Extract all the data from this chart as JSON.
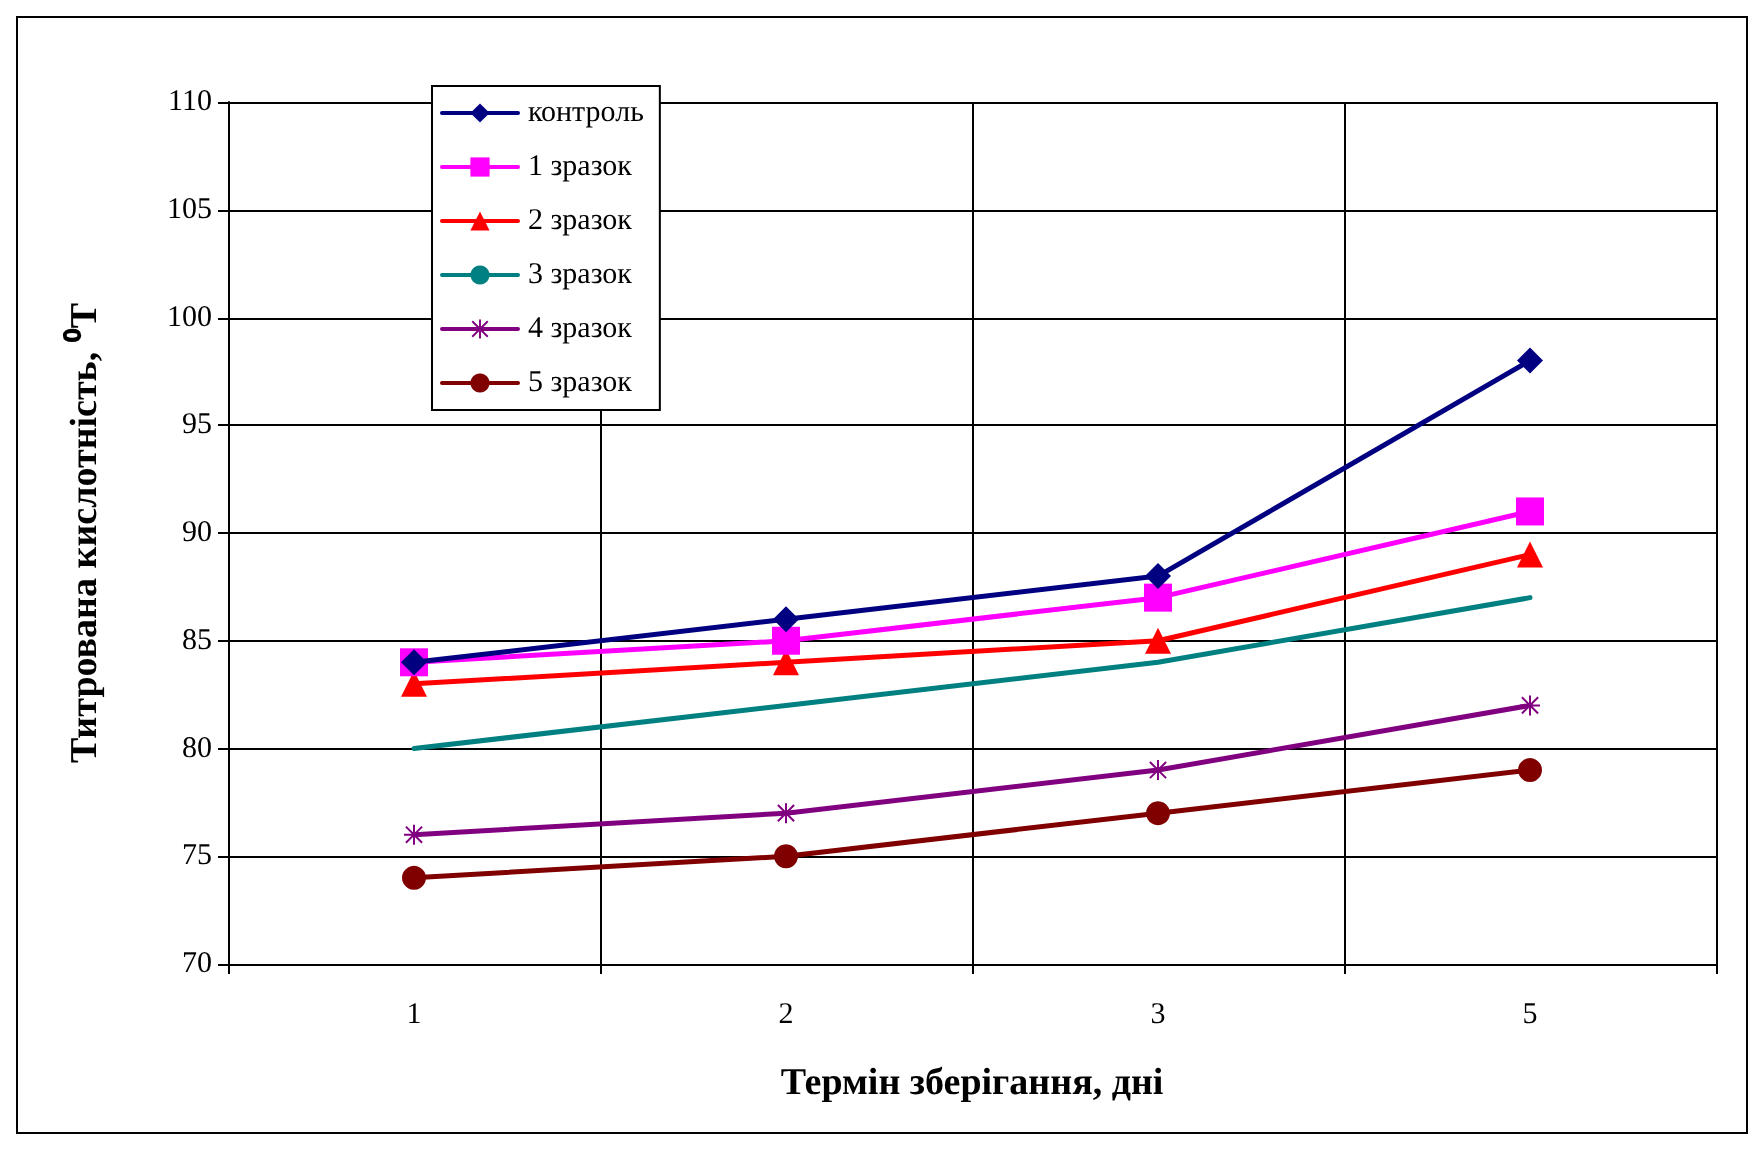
{
  "chart_data": {
    "type": "line",
    "xlabel": "Термін зберігання, дні",
    "ylabel": "Титрована кислотність, ⁰T",
    "categories": [
      "1",
      "2",
      "3",
      "5"
    ],
    "series": [
      {
        "name": "контроль",
        "color": "#000080",
        "marker": "diamond",
        "values": [
          84,
          86,
          88,
          98
        ]
      },
      {
        "name": "1 зразок",
        "color": "#ff00ff",
        "marker": "square",
        "values": [
          84,
          85,
          87,
          91
        ]
      },
      {
        "name": "2 зразок",
        "color": "#ff0000",
        "marker": "triangle",
        "values": [
          83,
          84,
          85,
          89
        ]
      },
      {
        "name": "3 зразок",
        "color": "#008080",
        "marker": "none",
        "values": [
          80,
          82,
          84,
          87
        ]
      },
      {
        "name": "4 зразок",
        "color": "#800080",
        "marker": "star",
        "values": [
          76,
          77,
          79,
          82
        ]
      },
      {
        "name": "5 зразок",
        "color": "#800000",
        "marker": "circle",
        "values": [
          74,
          75,
          77,
          79
        ]
      }
    ],
    "ylim": [
      70,
      110
    ],
    "yticks": [
      70,
      75,
      80,
      85,
      90,
      95,
      100,
      105,
      110
    ],
    "grid": true,
    "legend": "top left"
  }
}
